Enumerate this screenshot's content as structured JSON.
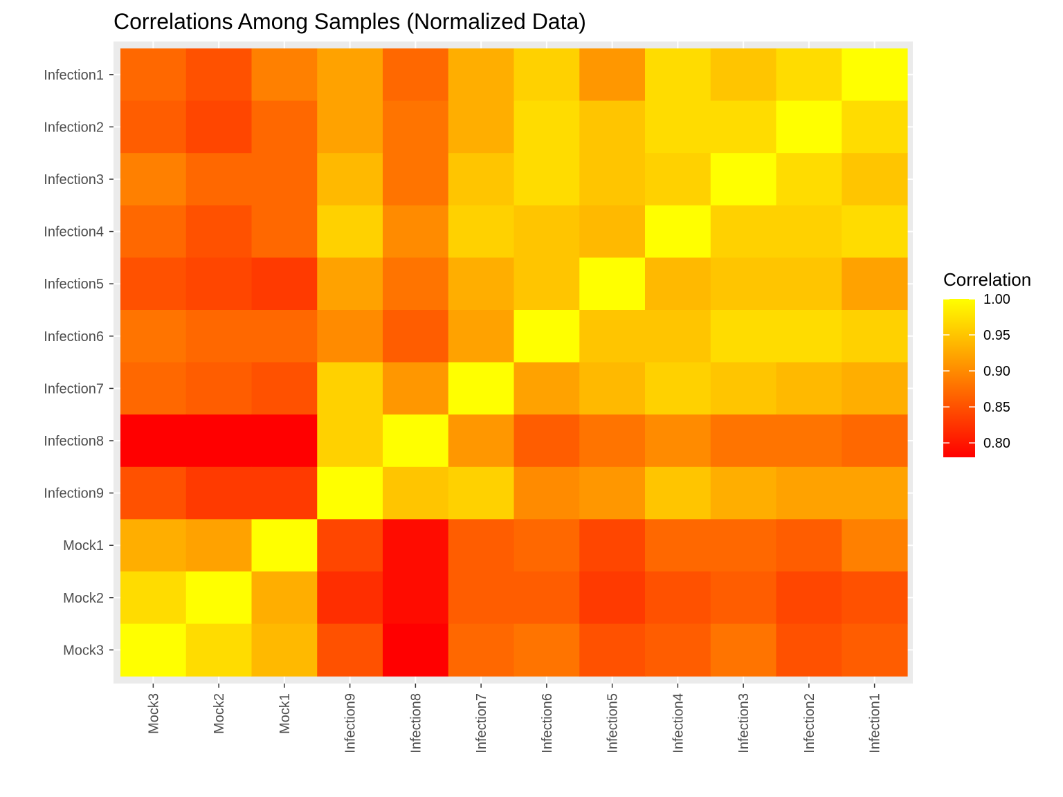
{
  "chart_data": {
    "type": "heatmap",
    "title": "Correlations Among Samples (Normalized Data)",
    "xlabel": "",
    "ylabel": "",
    "x_categories": [
      "Mock3",
      "Mock2",
      "Mock1",
      "Infection9",
      "Infection8",
      "Infection7",
      "Infection6",
      "Infection5",
      "Infection4",
      "Infection3",
      "Infection2",
      "Infection1"
    ],
    "y_categories": [
      "Infection1",
      "Infection2",
      "Infection3",
      "Infection4",
      "Infection5",
      "Infection6",
      "Infection7",
      "Infection8",
      "Infection9",
      "Mock1",
      "Mock2",
      "Mock3"
    ],
    "values": [
      [
        0.87,
        0.85,
        0.89,
        0.92,
        0.87,
        0.93,
        0.96,
        0.91,
        0.97,
        0.95,
        0.97,
        1.0
      ],
      [
        0.86,
        0.84,
        0.87,
        0.92,
        0.88,
        0.93,
        0.97,
        0.95,
        0.97,
        0.97,
        1.0,
        0.97
      ],
      [
        0.89,
        0.87,
        0.87,
        0.94,
        0.88,
        0.95,
        0.97,
        0.95,
        0.96,
        1.0,
        0.97,
        0.95
      ],
      [
        0.87,
        0.85,
        0.87,
        0.96,
        0.9,
        0.96,
        0.95,
        0.94,
        1.0,
        0.96,
        0.96,
        0.97
      ],
      [
        0.85,
        0.84,
        0.83,
        0.92,
        0.88,
        0.93,
        0.95,
        1.0,
        0.94,
        0.95,
        0.95,
        0.92
      ],
      [
        0.88,
        0.87,
        0.87,
        0.9,
        0.86,
        0.92,
        1.0,
        0.95,
        0.95,
        0.97,
        0.97,
        0.96
      ],
      [
        0.87,
        0.86,
        0.85,
        0.96,
        0.91,
        1.0,
        0.92,
        0.94,
        0.96,
        0.95,
        0.94,
        0.93
      ],
      [
        0.78,
        0.78,
        0.78,
        0.96,
        1.0,
        0.91,
        0.86,
        0.88,
        0.9,
        0.88,
        0.88,
        0.87
      ],
      [
        0.85,
        0.83,
        0.83,
        1.0,
        0.95,
        0.96,
        0.9,
        0.91,
        0.95,
        0.93,
        0.92,
        0.92
      ],
      [
        0.93,
        0.92,
        1.0,
        0.84,
        0.79,
        0.86,
        0.87,
        0.84,
        0.87,
        0.87,
        0.86,
        0.89
      ],
      [
        0.97,
        1.0,
        0.93,
        0.82,
        0.79,
        0.86,
        0.86,
        0.83,
        0.85,
        0.86,
        0.84,
        0.85
      ],
      [
        1.0,
        0.97,
        0.94,
        0.85,
        0.78,
        0.87,
        0.88,
        0.85,
        0.86,
        0.88,
        0.85,
        0.86
      ]
    ],
    "color_scale": {
      "low": "#ff0000",
      "high": "#ffff00",
      "min": 0.78,
      "max": 1.0
    },
    "legend": {
      "title": "Correlation",
      "ticks": [
        1.0,
        0.95,
        0.9,
        0.85,
        0.8
      ],
      "tick_labels": [
        "1.00",
        "0.95",
        "0.90",
        "0.85",
        "0.80"
      ],
      "placement": "right"
    },
    "panel_background": "#ebebeb",
    "grid": true
  }
}
